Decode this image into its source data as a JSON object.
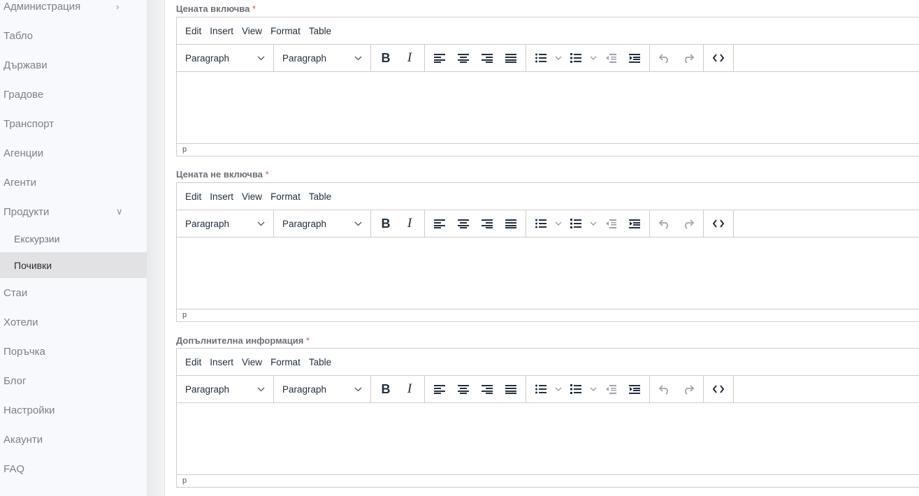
{
  "sidebar": {
    "items": [
      {
        "label": "Администрация",
        "chevron": "chevron-right-icon"
      },
      {
        "label": "Табло"
      },
      {
        "label": "Държави"
      },
      {
        "label": "Градове"
      },
      {
        "label": "Транспорт"
      },
      {
        "label": "Агенции"
      },
      {
        "label": "Агенти"
      },
      {
        "label": "Продукти",
        "chevron": "chevron-down-icon"
      },
      {
        "label": "Екскурзии",
        "sub": true
      },
      {
        "label": "Почивки",
        "sub": true,
        "active": true
      },
      {
        "label": "Стаи"
      },
      {
        "label": "Хотели"
      },
      {
        "label": "Поръчка"
      },
      {
        "label": "Блог"
      },
      {
        "label": "Настройки"
      },
      {
        "label": "Акаунти"
      },
      {
        "label": "FAQ"
      }
    ]
  },
  "editor_ui": {
    "menu": [
      "Edit",
      "Insert",
      "View",
      "Format",
      "Table"
    ],
    "block_select": "Paragraph",
    "font_select": "Paragraph",
    "status_path": "p"
  },
  "fields": [
    {
      "label": "Цената включва",
      "required": "*"
    },
    {
      "label": "Цената не включва",
      "required": "*"
    },
    {
      "label": "Допълнителна информация",
      "required": "*"
    }
  ],
  "colors": {
    "required": "#e0505a",
    "active_bg": "#e2e2e4",
    "sidebar_bg": "#f8f9fd"
  }
}
